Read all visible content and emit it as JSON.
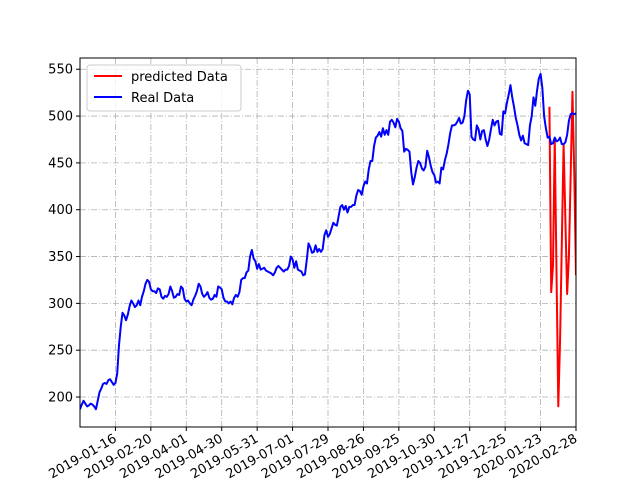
{
  "chart_data": {
    "type": "line",
    "title": "",
    "xlabel": "",
    "ylabel": "",
    "ylim": [
      168,
      562
    ],
    "y_ticks": [
      200,
      250,
      300,
      350,
      400,
      450,
      500,
      550
    ],
    "x_tick_labels": [
      "2019-01-16",
      "2019-02-20",
      "2019-04-01",
      "2019-04-30",
      "2019-05-31",
      "2019-07-01",
      "2019-07-29",
      "2019-08-26",
      "2019-09-25",
      "2019-10-30",
      "2019-11-27",
      "2019-12-25",
      "2020-01-23",
      "2020-02-28"
    ],
    "grid": true,
    "legend": "top-left",
    "x_domain": [
      0,
      280
    ],
    "x_tick_positions": [
      20,
      40,
      60,
      80,
      100,
      120,
      140,
      160,
      180,
      200,
      220,
      240,
      260,
      280
    ],
    "series": [
      {
        "name": "predicted Data",
        "color": "#ff0000",
        "points": [
          [
            265,
            510
          ],
          [
            266,
            312
          ],
          [
            267,
            340
          ],
          [
            268,
            476
          ],
          [
            270,
            190
          ],
          [
            271,
            260
          ],
          [
            273,
            470
          ],
          [
            275,
            310
          ],
          [
            276,
            350
          ],
          [
            278,
            526
          ],
          [
            279,
            440
          ],
          [
            280,
            330
          ]
        ]
      },
      {
        "name": "Real Data",
        "color": "#0000ff",
        "points": [
          [
            0,
            187
          ],
          [
            1,
            192
          ],
          [
            2,
            196
          ],
          [
            3,
            193
          ],
          [
            4,
            190
          ],
          [
            5,
            191
          ],
          [
            6,
            193
          ],
          [
            7,
            192
          ],
          [
            8,
            190
          ],
          [
            9,
            187
          ],
          [
            10,
            196
          ],
          [
            11,
            205
          ],
          [
            12,
            209
          ],
          [
            13,
            214
          ],
          [
            14,
            215
          ],
          [
            15,
            214
          ],
          [
            16,
            218
          ],
          [
            17,
            219
          ],
          [
            18,
            216
          ],
          [
            19,
            213
          ],
          [
            20,
            215
          ],
          [
            21,
            225
          ],
          [
            22,
            255
          ],
          [
            23,
            275
          ],
          [
            24,
            290
          ],
          [
            25,
            287
          ],
          [
            26,
            282
          ],
          [
            27,
            288
          ],
          [
            28,
            297
          ],
          [
            29,
            303
          ],
          [
            30,
            300
          ],
          [
            31,
            296
          ],
          [
            32,
            298
          ],
          [
            33,
            303
          ],
          [
            34,
            298
          ],
          [
            35,
            307
          ],
          [
            36,
            313
          ],
          [
            37,
            321
          ],
          [
            38,
            325
          ],
          [
            39,
            323
          ],
          [
            40,
            315
          ],
          [
            41,
            313
          ],
          [
            42,
            313
          ],
          [
            43,
            311
          ],
          [
            44,
            316
          ],
          [
            45,
            315
          ],
          [
            46,
            307
          ],
          [
            47,
            305
          ],
          [
            48,
            308
          ],
          [
            49,
            307
          ],
          [
            50,
            310
          ],
          [
            51,
            318
          ],
          [
            52,
            313
          ],
          [
            53,
            306
          ],
          [
            54,
            307
          ],
          [
            55,
            310
          ],
          [
            56,
            309
          ],
          [
            57,
            318
          ],
          [
            58,
            316
          ],
          [
            59,
            305
          ],
          [
            60,
            302
          ],
          [
            61,
            303
          ],
          [
            62,
            300
          ],
          [
            63,
            298
          ],
          [
            64,
            304
          ],
          [
            65,
            308
          ],
          [
            66,
            313
          ],
          [
            67,
            321
          ],
          [
            68,
            318
          ],
          [
            69,
            310
          ],
          [
            70,
            307
          ],
          [
            71,
            309
          ],
          [
            72,
            312
          ],
          [
            73,
            306
          ],
          [
            74,
            304
          ],
          [
            75,
            305
          ],
          [
            76,
            309
          ],
          [
            77,
            307
          ],
          [
            78,
            318
          ],
          [
            79,
            317
          ],
          [
            80,
            315
          ],
          [
            81,
            306
          ],
          [
            82,
            302
          ],
          [
            83,
            302
          ],
          [
            84,
            300
          ],
          [
            85,
            302
          ],
          [
            86,
            299
          ],
          [
            87,
            306
          ],
          [
            88,
            309
          ],
          [
            89,
            307
          ],
          [
            90,
            312
          ],
          [
            91,
            325
          ],
          [
            92,
            327
          ],
          [
            93,
            327
          ],
          [
            94,
            333
          ],
          [
            95,
            335
          ],
          [
            96,
            350
          ],
          [
            97,
            357
          ],
          [
            98,
            348
          ],
          [
            99,
            345
          ],
          [
            100,
            337
          ],
          [
            101,
            342
          ],
          [
            102,
            336
          ],
          [
            103,
            337
          ],
          [
            104,
            338
          ],
          [
            105,
            335
          ],
          [
            106,
            334
          ],
          [
            107,
            333
          ],
          [
            108,
            332
          ],
          [
            109,
            330
          ],
          [
            110,
            333
          ],
          [
            111,
            338
          ],
          [
            112,
            340
          ],
          [
            113,
            338
          ],
          [
            114,
            336
          ],
          [
            115,
            334
          ],
          [
            116,
            336
          ],
          [
            117,
            336
          ],
          [
            118,
            340
          ],
          [
            119,
            350
          ],
          [
            120,
            347
          ],
          [
            121,
            338
          ],
          [
            122,
            345
          ],
          [
            123,
            336
          ],
          [
            124,
            335
          ],
          [
            125,
            334
          ],
          [
            126,
            330
          ],
          [
            127,
            331
          ],
          [
            128,
            346
          ],
          [
            129,
            364
          ],
          [
            130,
            360
          ],
          [
            131,
            354
          ],
          [
            132,
            355
          ],
          [
            133,
            362
          ],
          [
            134,
            355
          ],
          [
            135,
            358
          ],
          [
            136,
            355
          ],
          [
            137,
            358
          ],
          [
            138,
            373
          ],
          [
            139,
            378
          ],
          [
            140,
            371
          ],
          [
            141,
            374
          ],
          [
            142,
            380
          ],
          [
            143,
            386
          ],
          [
            144,
            384
          ],
          [
            145,
            383
          ],
          [
            146,
            393
          ],
          [
            147,
            403
          ],
          [
            148,
            405
          ],
          [
            149,
            400
          ],
          [
            150,
            404
          ],
          [
            151,
            397
          ],
          [
            152,
            403
          ],
          [
            153,
            403
          ],
          [
            154,
            405
          ],
          [
            155,
            405
          ],
          [
            156,
            415
          ],
          [
            157,
            421
          ],
          [
            158,
            420
          ],
          [
            159,
            416
          ],
          [
            160,
            425
          ],
          [
            161,
            430
          ],
          [
            162,
            428
          ],
          [
            163,
            443
          ],
          [
            164,
            452
          ],
          [
            165,
            452
          ],
          [
            166,
            468
          ],
          [
            167,
            477
          ],
          [
            168,
            479
          ],
          [
            169,
            483
          ],
          [
            170,
            478
          ],
          [
            171,
            487
          ],
          [
            172,
            480
          ],
          [
            173,
            485
          ],
          [
            174,
            480
          ],
          [
            175,
            494
          ],
          [
            176,
            496
          ],
          [
            177,
            493
          ],
          [
            178,
            488
          ],
          [
            179,
            497
          ],
          [
            180,
            494
          ],
          [
            181,
            487
          ],
          [
            182,
            484
          ],
          [
            183,
            462
          ],
          [
            184,
            465
          ],
          [
            185,
            464
          ],
          [
            186,
            462
          ],
          [
            187,
            440
          ],
          [
            188,
            427
          ],
          [
            189,
            435
          ],
          [
            190,
            445
          ],
          [
            191,
            452
          ],
          [
            192,
            450
          ],
          [
            193,
            444
          ],
          [
            194,
            442
          ],
          [
            195,
            446
          ],
          [
            196,
            463
          ],
          [
            197,
            456
          ],
          [
            198,
            447
          ],
          [
            199,
            440
          ],
          [
            200,
            437
          ],
          [
            201,
            429
          ],
          [
            202,
            430
          ],
          [
            203,
            428
          ],
          [
            204,
            445
          ],
          [
            205,
            443
          ],
          [
            206,
            453
          ],
          [
            207,
            460
          ],
          [
            208,
            470
          ],
          [
            209,
            482
          ],
          [
            210,
            490
          ],
          [
            211,
            490
          ],
          [
            212,
            491
          ],
          [
            213,
            494
          ],
          [
            214,
            498
          ],
          [
            215,
            492
          ],
          [
            216,
            493
          ],
          [
            217,
            500
          ],
          [
            218,
            517
          ],
          [
            219,
            527
          ],
          [
            220,
            523
          ],
          [
            221,
            478
          ],
          [
            222,
            475
          ],
          [
            223,
            474
          ],
          [
            224,
            490
          ],
          [
            225,
            486
          ],
          [
            226,
            475
          ],
          [
            227,
            484
          ],
          [
            228,
            485
          ],
          [
            229,
            475
          ],
          [
            230,
            468
          ],
          [
            231,
            475
          ],
          [
            232,
            486
          ],
          [
            233,
            496
          ],
          [
            234,
            490
          ],
          [
            235,
            494
          ],
          [
            236,
            495
          ],
          [
            237,
            481
          ],
          [
            238,
            480
          ],
          [
            239,
            505
          ],
          [
            240,
            503
          ],
          [
            241,
            514
          ],
          [
            242,
            523
          ],
          [
            243,
            533
          ],
          [
            244,
            520
          ],
          [
            245,
            510
          ],
          [
            246,
            498
          ],
          [
            247,
            490
          ],
          [
            248,
            480
          ],
          [
            249,
            474
          ],
          [
            250,
            479
          ],
          [
            251,
            471
          ],
          [
            252,
            470
          ],
          [
            253,
            469
          ],
          [
            254,
            490
          ],
          [
            255,
            500
          ],
          [
            256,
            520
          ],
          [
            257,
            511
          ],
          [
            258,
            527
          ],
          [
            259,
            540
          ],
          [
            260,
            545
          ],
          [
            261,
            530
          ],
          [
            262,
            500
          ],
          [
            263,
            487
          ],
          [
            264,
            477
          ],
          [
            265,
            478
          ],
          [
            266,
            470
          ],
          [
            267,
            471
          ],
          [
            268,
            477
          ],
          [
            269,
            473
          ],
          [
            270,
            474
          ],
          [
            271,
            477
          ],
          [
            272,
            470
          ],
          [
            273,
            470
          ],
          [
            274,
            472
          ],
          [
            275,
            480
          ],
          [
            276,
            495
          ],
          [
            277,
            502
          ],
          [
            278,
            503
          ],
          [
            279,
            502
          ],
          [
            280,
            503
          ]
        ]
      }
    ]
  }
}
